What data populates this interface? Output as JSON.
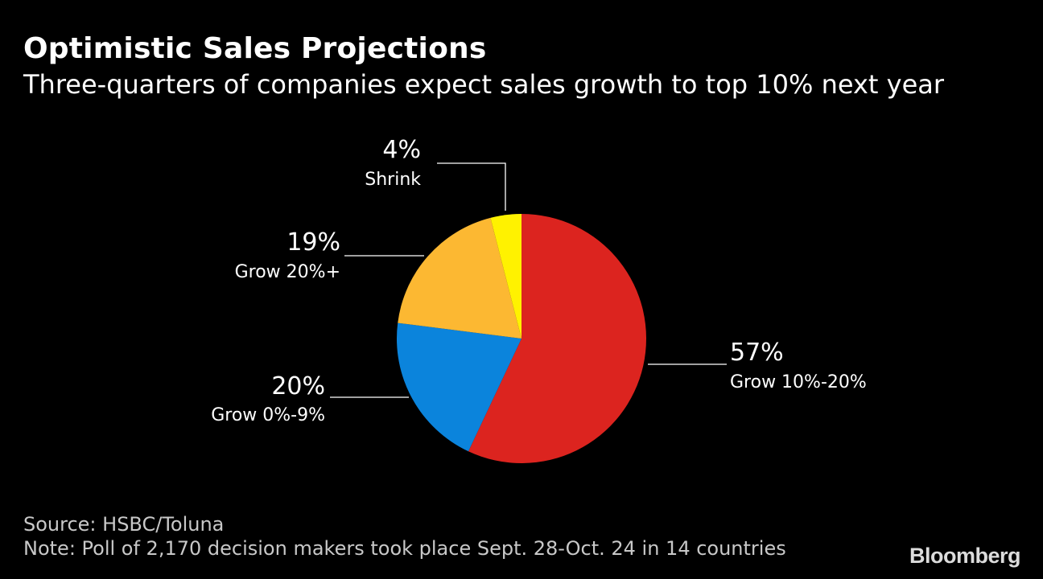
{
  "header": {
    "title": "Optimistic Sales Projections",
    "subtitle": "Three-quarters of companies expect sales growth to top 10% next year"
  },
  "chart_data": {
    "type": "pie",
    "title": "Optimistic Sales Projections",
    "subtitle": "Three-quarters of companies expect sales growth to top 10% next year",
    "units": "%",
    "slices": [
      {
        "label": "Grow 10%-20%",
        "value": 57,
        "value_label": "57%",
        "color": "#dc241f"
      },
      {
        "label": "Grow 0%-9%",
        "value": 20,
        "value_label": "20%",
        "color": "#0b84dc"
      },
      {
        "label": "Grow 20%+",
        "value": 19,
        "value_label": "19%",
        "color": "#fcb832"
      },
      {
        "label": "Shrink",
        "value": 4,
        "value_label": "4%",
        "color": "#fff200"
      }
    ]
  },
  "footer": {
    "source": "Source: HSBC/Toluna",
    "note": "Note: Poll of 2,170 decision makers took place Sept. 28-Oct. 24 in 14 countries",
    "brand": "Bloomberg"
  }
}
